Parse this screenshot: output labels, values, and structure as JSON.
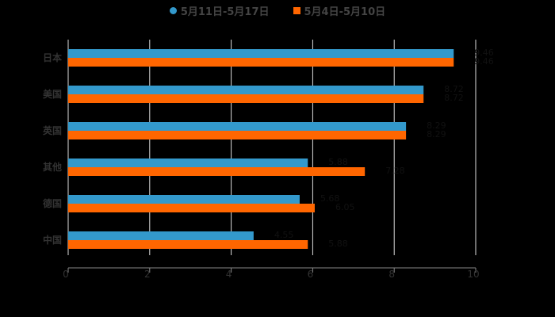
{
  "legend": {
    "items": [
      {
        "label": "5月11日-5月17日",
        "color": "#3399CC",
        "marker": "circle"
      },
      {
        "label": "5月4日-5月10日",
        "color": "#FF6600",
        "marker": "square"
      }
    ]
  },
  "chart_data": {
    "type": "bar",
    "orientation": "horizontal",
    "title": "",
    "xlabel": "",
    "ylabel": "",
    "categories": [
      "日本",
      "美国",
      "英国",
      "其他",
      "德国",
      "中国"
    ],
    "series": [
      {
        "name": "5月11日-5月17日",
        "color": "#3399CC",
        "values": [
          9.46,
          8.72,
          8.29,
          5.88,
          5.68,
          4.55
        ]
      },
      {
        "name": "5月4日-5月10日",
        "color": "#FF6600",
        "values": [
          9.46,
          8.72,
          8.29,
          7.28,
          6.05,
          5.88
        ]
      }
    ],
    "xlim": [
      0,
      10
    ],
    "xticks": [
      "0",
      "2",
      "4",
      "6",
      "8",
      "10"
    ],
    "grid": true,
    "legend_position": "top"
  }
}
